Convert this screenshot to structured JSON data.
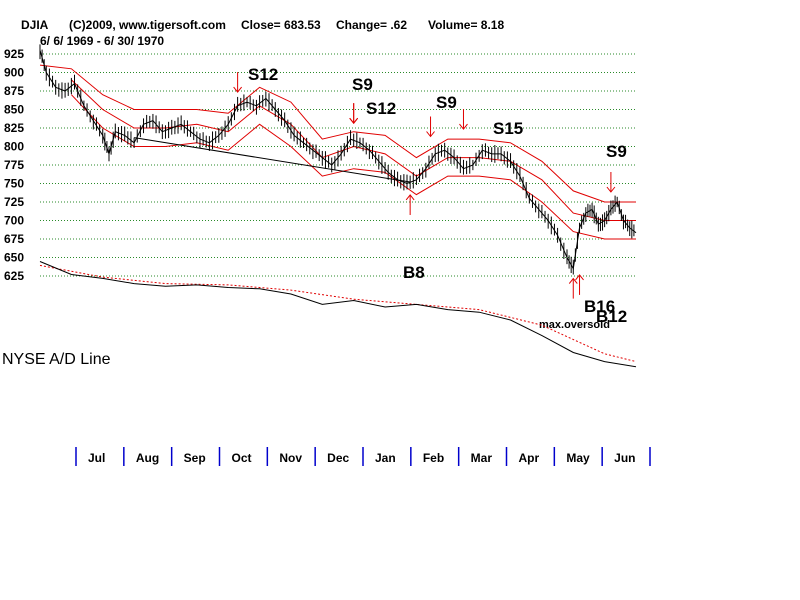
{
  "header": {
    "symbol": "DJIA",
    "copyright": "(C)2009, www.tigersoft.com",
    "close_text": "Close=  683.53",
    "change_text": "Change= .62",
    "volume_text": "Volume= 8.18",
    "date_range": "6/ 6/ 1969 - 6/ 30/ 1970"
  },
  "chart_data": {
    "type": "line",
    "y_ticks": [
      925,
      900,
      875,
      850,
      825,
      800,
      775,
      750,
      725,
      700,
      675,
      650,
      625
    ],
    "y_range": [
      625,
      925
    ],
    "grid": "horizontal dotted, green",
    "months": [
      "Jul",
      "Aug",
      "Sep",
      "Oct",
      "Nov",
      "Dec",
      "Jan",
      "Feb",
      "Mar",
      "Apr",
      "May",
      "Jun"
    ],
    "price_series": {
      "points": [
        [
          0,
          930
        ],
        [
          4,
          900
        ],
        [
          10,
          880
        ],
        [
          16,
          875
        ],
        [
          22,
          885
        ],
        [
          28,
          855
        ],
        [
          34,
          835
        ],
        [
          40,
          815
        ],
        [
          44,
          790
        ],
        [
          48,
          820
        ],
        [
          54,
          815
        ],
        [
          60,
          805
        ],
        [
          66,
          830
        ],
        [
          72,
          835
        ],
        [
          78,
          820
        ],
        [
          84,
          825
        ],
        [
          90,
          830
        ],
        [
          96,
          820
        ],
        [
          102,
          810
        ],
        [
          108,
          805
        ],
        [
          114,
          815
        ],
        [
          120,
          830
        ],
        [
          126,
          855
        ],
        [
          132,
          860
        ],
        [
          138,
          855
        ],
        [
          144,
          865
        ],
        [
          150,
          850
        ],
        [
          156,
          835
        ],
        [
          162,
          815
        ],
        [
          168,
          805
        ],
        [
          174,
          795
        ],
        [
          180,
          785
        ],
        [
          186,
          775
        ],
        [
          192,
          790
        ],
        [
          198,
          810
        ],
        [
          204,
          805
        ],
        [
          210,
          795
        ],
        [
          216,
          780
        ],
        [
          222,
          765
        ],
        [
          228,
          755
        ],
        [
          234,
          750
        ],
        [
          240,
          755
        ],
        [
          246,
          770
        ],
        [
          252,
          790
        ],
        [
          258,
          795
        ],
        [
          264,
          785
        ],
        [
          270,
          770
        ],
        [
          276,
          775
        ],
        [
          282,
          795
        ],
        [
          288,
          790
        ],
        [
          294,
          790
        ],
        [
          300,
          780
        ],
        [
          306,
          760
        ],
        [
          312,
          730
        ],
        [
          318,
          715
        ],
        [
          324,
          700
        ],
        [
          330,
          680
        ],
        [
          336,
          650
        ],
        [
          340,
          635
        ],
        [
          344,
          690
        ],
        [
          348,
          710
        ],
        [
          352,
          715
        ],
        [
          356,
          695
        ],
        [
          360,
          700
        ],
        [
          364,
          715
        ],
        [
          368,
          725
        ],
        [
          372,
          700
        ],
        [
          376,
          690
        ],
        [
          380,
          683.53
        ]
      ]
    },
    "band_upper": [
      [
        0,
        910
      ],
      [
        20,
        905
      ],
      [
        40,
        870
      ],
      [
        60,
        850
      ],
      [
        80,
        850
      ],
      [
        100,
        850
      ],
      [
        120,
        845
      ],
      [
        140,
        880
      ],
      [
        160,
        860
      ],
      [
        180,
        810
      ],
      [
        200,
        820
      ],
      [
        220,
        815
      ],
      [
        240,
        785
      ],
      [
        260,
        810
      ],
      [
        280,
        810
      ],
      [
        300,
        805
      ],
      [
        320,
        780
      ],
      [
        340,
        740
      ],
      [
        360,
        725
      ],
      [
        380,
        725
      ]
    ],
    "band_middle": [
      [
        20,
        890
      ],
      [
        40,
        850
      ],
      [
        60,
        825
      ],
      [
        80,
        825
      ],
      [
        100,
        830
      ],
      [
        120,
        820
      ],
      [
        140,
        855
      ],
      [
        160,
        830
      ],
      [
        180,
        785
      ],
      [
        200,
        800
      ],
      [
        220,
        790
      ],
      [
        240,
        760
      ],
      [
        260,
        785
      ],
      [
        280,
        785
      ],
      [
        300,
        780
      ],
      [
        320,
        755
      ],
      [
        340,
        710
      ],
      [
        360,
        700
      ],
      [
        380,
        700
      ]
    ],
    "band_lower": [
      [
        20,
        870
      ],
      [
        40,
        825
      ],
      [
        60,
        800
      ],
      [
        80,
        800
      ],
      [
        100,
        805
      ],
      [
        120,
        795
      ],
      [
        140,
        830
      ],
      [
        160,
        800
      ],
      [
        180,
        760
      ],
      [
        200,
        770
      ],
      [
        220,
        765
      ],
      [
        240,
        735
      ],
      [
        260,
        760
      ],
      [
        280,
        760
      ],
      [
        300,
        755
      ],
      [
        320,
        725
      ],
      [
        340,
        685
      ],
      [
        360,
        675
      ],
      [
        380,
        675
      ]
    ],
    "trendline": [
      [
        60,
        812
      ],
      [
        236,
        752
      ]
    ],
    "ad_line": {
      "label": "NYSE A/D Line",
      "series": [
        [
          0,
          0.95
        ],
        [
          20,
          0.85
        ],
        [
          40,
          0.82
        ],
        [
          60,
          0.78
        ],
        [
          80,
          0.76
        ],
        [
          100,
          0.77
        ],
        [
          120,
          0.75
        ],
        [
          140,
          0.74
        ],
        [
          160,
          0.7
        ],
        [
          180,
          0.62
        ],
        [
          200,
          0.65
        ],
        [
          220,
          0.6
        ],
        [
          240,
          0.62
        ],
        [
          260,
          0.58
        ],
        [
          280,
          0.56
        ],
        [
          300,
          0.5
        ],
        [
          320,
          0.38
        ],
        [
          340,
          0.25
        ],
        [
          360,
          0.18
        ],
        [
          380,
          0.14
        ]
      ],
      "ma": [
        [
          0,
          0.92
        ],
        [
          40,
          0.83
        ],
        [
          80,
          0.78
        ],
        [
          120,
          0.77
        ],
        [
          160,
          0.73
        ],
        [
          200,
          0.66
        ],
        [
          240,
          0.62
        ],
        [
          280,
          0.58
        ],
        [
          320,
          0.46
        ],
        [
          360,
          0.24
        ],
        [
          380,
          0.18
        ]
      ]
    },
    "signals": [
      {
        "label": "S12",
        "type": "sell",
        "x": 126,
        "price": 860
      },
      {
        "label": "S9",
        "type": "sell",
        "x": 200,
        "price": 818
      },
      {
        "label": "S12",
        "type": "sell",
        "x": 200,
        "price": 818
      },
      {
        "label": "S9",
        "type": "sell",
        "x": 249,
        "price": 800
      },
      {
        "label": "S15",
        "type": "sell",
        "x": 270,
        "price": 810
      },
      {
        "label": "S9",
        "type": "sell",
        "x": 364,
        "price": 725
      },
      {
        "label": "B8",
        "type": "buy",
        "x": 236,
        "price": 748
      },
      {
        "label": "B16",
        "type": "buy",
        "x": 340,
        "price": 635
      },
      {
        "label": "B12",
        "type": "buy",
        "x": 344,
        "price": 640
      }
    ],
    "annotation": "max.oversold"
  }
}
